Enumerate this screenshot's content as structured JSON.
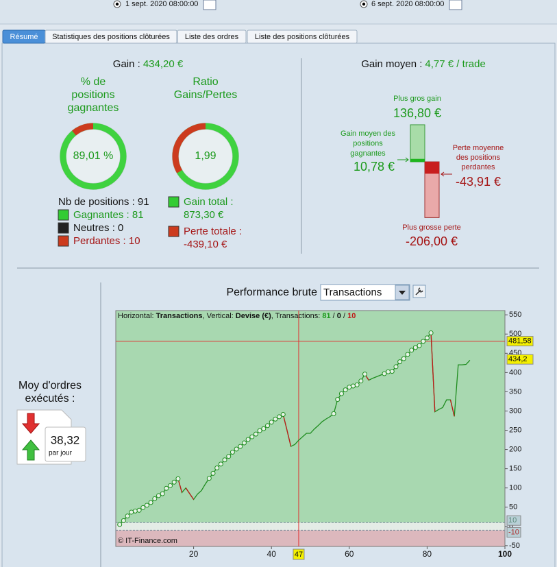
{
  "toolbar": {
    "date_from": "1 sept. 2020 08:00:00",
    "date_to": "6 sept. 2020 08:00:00"
  },
  "tabs": [
    "Résumé",
    "Statistiques des positions clôturées",
    "Liste des ordres",
    "Liste des positions clôturées"
  ],
  "gain": {
    "label": "Gain :",
    "value": "434,20 €"
  },
  "win_rate": {
    "title": [
      "% de",
      "positions",
      "gagnantes"
    ],
    "value": {
      "value": 89.01,
      "label": "89,01 %"
    }
  },
  "ratio": {
    "title": [
      "Ratio",
      "Gains/Pertes"
    ],
    "value": "1,99"
  },
  "counts": {
    "total": "Nb de positions : 91",
    "winning": "Gagnantes : 81",
    "neutral": "Neutres : 0",
    "losing": "Perdantes : 10"
  },
  "gain_total": {
    "label": "Gain total :",
    "value": {
      "value": 873.3,
      "label": "873,30 €"
    }
  },
  "loss_total": {
    "label": "Perte totale :",
    "value": {
      "value": -439.1,
      "label": "-439,10 €"
    }
  },
  "avg_gain": {
    "label": "Gain moyen :",
    "value": "4,77 € / trade"
  },
  "extremes": {
    "max_gain": {
      "label": [
        "Plus gros gain"
      ],
      "value": {
        "value": 136.8,
        "label": "136,80 €"
      }
    },
    "avg_win": {
      "label": [
        "Gain moyen des",
        "positions",
        "gagnantes"
      ],
      "value": {
        "value": 10.78,
        "label": "10,78 €"
      }
    },
    "avg_loss": {
      "label": [
        "Perte moyenne",
        "des positions",
        "perdantes"
      ],
      "value": {
        "value": -43.91,
        "label": "-43,91 €"
      }
    },
    "max_loss": {
      "label": [
        "Plus grosse perte"
      ],
      "value": {
        "value": -206,
        "label": "-206,00 €"
      }
    }
  },
  "orders": {
    "label": [
      "Moy d'ordres",
      "exécutés :"
    ],
    "value": "38,32",
    "unit": "par jour"
  },
  "chart_data": {
    "type": "line",
    "title": "Performance brute",
    "selector": "Transactions",
    "header": [
      "Horizontal: ",
      "Transactions",
      ", Vertical: ",
      "Devise (€)",
      ", Transactions: ",
      "81",
      " / ",
      "0",
      " / ",
      "10"
    ],
    "footer": "© IT-Finance.com",
    "x": [
      1,
      2,
      3,
      4,
      5,
      6,
      7,
      8,
      9,
      10,
      11,
      12,
      13,
      14,
      15,
      16,
      17,
      18,
      19,
      20,
      21,
      22,
      23,
      24,
      25,
      26,
      27,
      28,
      29,
      30,
      31,
      32,
      33,
      34,
      35,
      36,
      37,
      38,
      39,
      40,
      41,
      42,
      43,
      44,
      45,
      46,
      47,
      48,
      49,
      50,
      51,
      52,
      53,
      54,
      55,
      56,
      57,
      58,
      59,
      60,
      61,
      62,
      63,
      64,
      65,
      66,
      67,
      68,
      69,
      70,
      71,
      72,
      73,
      74,
      75,
      76,
      77,
      78,
      79,
      80,
      81,
      82,
      83,
      84,
      85,
      86,
      87,
      88,
      89,
      90,
      91
    ],
    "values": [
      5,
      15,
      27,
      37,
      40,
      42,
      49,
      55,
      62,
      72,
      80,
      85,
      99,
      106,
      115,
      124,
      88,
      100,
      85,
      70,
      84,
      93,
      110,
      125,
      138,
      152,
      162,
      173,
      182,
      193,
      201,
      208,
      217,
      226,
      233,
      240,
      249,
      254,
      262,
      271,
      279,
      285,
      291,
      250,
      208,
      213,
      224,
      233,
      242,
      242,
      253,
      262,
      272,
      279,
      285,
      293,
      330,
      345,
      355,
      362,
      365,
      368,
      378,
      396,
      380,
      385,
      389,
      393,
      397,
      402,
      403,
      415,
      428,
      436,
      447,
      458,
      465,
      470,
      481,
      490,
      503,
      298,
      304,
      309,
      329,
      329,
      286,
      420,
      420,
      421,
      432
    ],
    "color": "#1e8c1e",
    "loss_color": "#c01818",
    "xlim": [
      0,
      100
    ],
    "ylim": [
      -52,
      561
    ],
    "xticks": [
      20,
      40,
      60,
      80,
      100
    ],
    "yticks": [
      -50,
      0,
      50,
      100,
      150,
      200,
      250,
      300,
      350,
      400,
      450,
      500,
      550
    ],
    "markers": [
      {
        "value": 481.58,
        "label": "481,58"
      },
      {
        "value": 434.2,
        "label": "434,2"
      },
      {
        "value": 10,
        "label": "10"
      },
      {
        "value": -10,
        "label": "-10"
      }
    ],
    "crosshair_x": {
      "value": 47,
      "label": "47"
    }
  }
}
